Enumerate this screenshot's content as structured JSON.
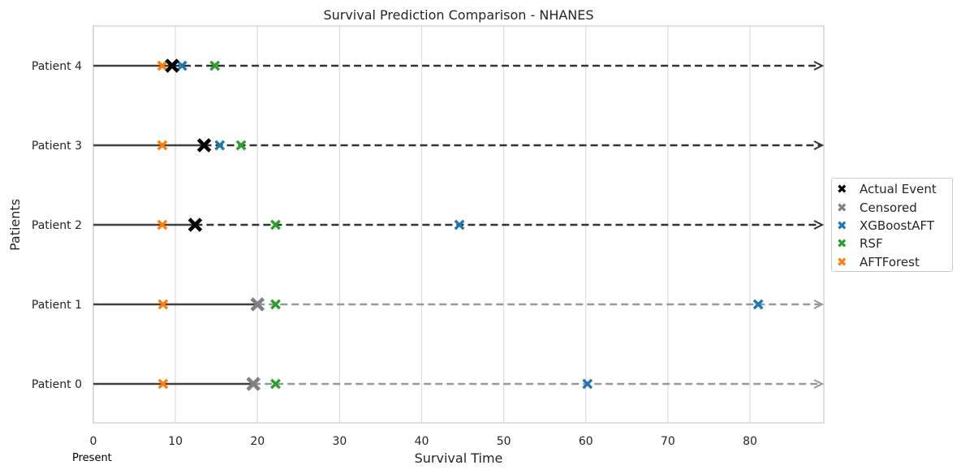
{
  "chart_data": {
    "type": "scatter",
    "title": "Survival Prediction Comparison - NHANES",
    "xlabel": "Survival Time",
    "ylabel": "Patients",
    "xlim": [
      0,
      89
    ],
    "xticks": [
      0,
      10,
      20,
      30,
      40,
      50,
      60,
      70,
      80
    ],
    "xtick_labels": [
      "0",
      "10",
      "20",
      "30",
      "40",
      "50",
      "60",
      "70",
      "80"
    ],
    "grid": true,
    "legend_position": "right",
    "annotation": "Present",
    "patients": [
      {
        "label": "Patient 0",
        "event_time": 19.5,
        "event_type": "censored",
        "predictions": {
          "XGBoostAFT": 60.2,
          "RSF": 22.2,
          "AFTForest": 8.5
        }
      },
      {
        "label": "Patient 1",
        "event_time": 20.0,
        "event_type": "censored",
        "predictions": {
          "XGBoostAFT": 81.0,
          "RSF": 22.2,
          "AFTForest": 8.5
        }
      },
      {
        "label": "Patient 2",
        "event_time": 12.4,
        "event_type": "actual",
        "predictions": {
          "XGBoostAFT": 44.6,
          "RSF": 22.2,
          "AFTForest": 8.4
        }
      },
      {
        "label": "Patient 3",
        "event_time": 13.5,
        "event_type": "actual",
        "predictions": {
          "XGBoostAFT": 15.4,
          "RSF": 18.0,
          "AFTForest": 8.4
        }
      },
      {
        "label": "Patient 4",
        "event_time": 9.6,
        "event_type": "actual",
        "predictions": {
          "XGBoostAFT": 10.8,
          "RSF": 14.8,
          "AFTForest": 8.4
        }
      }
    ],
    "series": [
      {
        "name": "XGBoostAFT",
        "color": "#1f77b4"
      },
      {
        "name": "RSF",
        "color": "#2ca02c"
      },
      {
        "name": "AFTForest",
        "color": "#ff7f0e"
      }
    ],
    "legend": [
      {
        "name": "Actual Event",
        "color": "#000000"
      },
      {
        "name": "Censored",
        "color": "#808080"
      },
      {
        "name": "XGBoostAFT",
        "color": "#1f77b4"
      },
      {
        "name": "RSF",
        "color": "#2ca02c"
      },
      {
        "name": "AFTForest",
        "color": "#ff7f0e"
      }
    ],
    "colors": {
      "actual_line": "#404040",
      "censored_dashed": "#999999",
      "actual_dashed": "#333333"
    }
  }
}
